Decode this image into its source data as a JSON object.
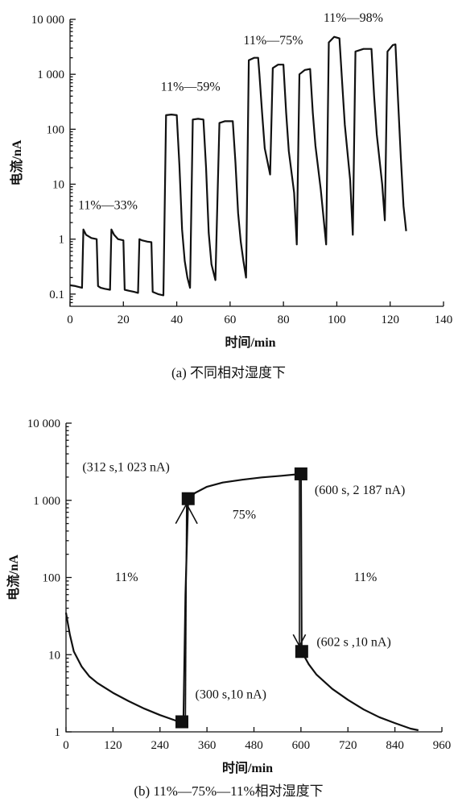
{
  "chart_data": [
    {
      "type": "line",
      "caption": "(a) 不同相对湿度下",
      "xlabel": "时间/min",
      "ylabel": "电流/nA",
      "xlim": [
        0,
        140
      ],
      "ylim": [
        0.06,
        10000
      ],
      "yscale": "log",
      "x_ticks": [
        0,
        20,
        40,
        60,
        80,
        100,
        120,
        140
      ],
      "x_tick_labels": [
        "0",
        "20",
        "40",
        "60",
        "80",
        "100",
        "120",
        "140"
      ],
      "y_ticks": [
        0.1,
        1,
        10,
        100,
        1000,
        10000
      ],
      "y_tick_labels": [
        "0.1",
        "1",
        "10",
        "100",
        "1 000",
        "10 000"
      ],
      "annotations": [
        {
          "text": "11%—33%",
          "x": 3,
          "y": 3.5
        },
        {
          "text": "11%—59%",
          "x": 34,
          "y": 500
        },
        {
          "text": "11%—75%",
          "x": 65,
          "y": 3500
        },
        {
          "text": "11%—98%",
          "x": 95,
          "y": 9000
        }
      ],
      "series": [
        {
          "points": [
            [
              0,
              0.145
            ],
            [
              2,
              0.14
            ],
            [
              4.5,
              0.13
            ],
            [
              5,
              1.5
            ],
            [
              6,
              1.2
            ],
            [
              8,
              1.05
            ],
            [
              10,
              1.0
            ],
            [
              10.5,
              0.14
            ],
            [
              11.5,
              0.13
            ],
            [
              13,
              0.125
            ],
            [
              15,
              0.12
            ],
            [
              15.5,
              1.5
            ],
            [
              16.5,
              1.2
            ],
            [
              18,
              1.0
            ],
            [
              20,
              0.95
            ],
            [
              20.5,
              0.12
            ],
            [
              22,
              0.115
            ],
            [
              24,
              0.11
            ],
            [
              25.5,
              0.105
            ],
            [
              26,
              1.0
            ],
            [
              27,
              0.95
            ],
            [
              29,
              0.9
            ],
            [
              30.5,
              0.88
            ],
            [
              31,
              0.11
            ],
            [
              33,
              0.1
            ],
            [
              35,
              0.095
            ],
            [
              36,
              180
            ],
            [
              38,
              185
            ],
            [
              40,
              180
            ],
            [
              41,
              22
            ],
            [
              42,
              1.5
            ],
            [
              43,
              0.4
            ],
            [
              44,
              0.2
            ],
            [
              45,
              0.13
            ],
            [
              46,
              150
            ],
            [
              48,
              155
            ],
            [
              50,
              150
            ],
            [
              51,
              20
            ],
            [
              52,
              1.3
            ],
            [
              53,
              0.35
            ],
            [
              54.5,
              0.18
            ],
            [
              56,
              130
            ],
            [
              58,
              140
            ],
            [
              61,
              140
            ],
            [
              62,
              25
            ],
            [
              63,
              3
            ],
            [
              64,
              0.9
            ],
            [
              65,
              0.4
            ],
            [
              66,
              0.2
            ],
            [
              67,
              1800
            ],
            [
              69,
              2000
            ],
            [
              70.5,
              2000
            ],
            [
              71,
              1000
            ],
            [
              72,
              200
            ],
            [
              73,
              45
            ],
            [
              75,
              15
            ],
            [
              76,
              1300
            ],
            [
              78,
              1500
            ],
            [
              80,
              1500
            ],
            [
              81,
              200
            ],
            [
              82,
              40
            ],
            [
              84,
              7
            ],
            [
              85,
              0.8
            ],
            [
              86,
              1000
            ],
            [
              88,
              1200
            ],
            [
              90,
              1250
            ],
            [
              91,
              200
            ],
            [
              92,
              50
            ],
            [
              94,
              8
            ],
            [
              96,
              0.8
            ],
            [
              97,
              3800
            ],
            [
              99,
              4800
            ],
            [
              101,
              4500
            ],
            [
              102,
              700
            ],
            [
              103,
              120
            ],
            [
              105,
              12
            ],
            [
              106,
              1.2
            ],
            [
              107,
              2600
            ],
            [
              110,
              2900
            ],
            [
              113,
              2900
            ],
            [
              114,
              400
            ],
            [
              115,
              80
            ],
            [
              117,
              10
            ],
            [
              118,
              2.2
            ],
            [
              119,
              2600
            ],
            [
              121,
              3400
            ],
            [
              122,
              3500
            ],
            [
              123,
              300
            ],
            [
              124,
              30
            ],
            [
              125,
              4
            ],
            [
              126,
              1.4
            ]
          ]
        }
      ]
    },
    {
      "type": "line",
      "caption": "(b) 11%—75%—11%相对湿度下",
      "xlabel": "时间/min",
      "ylabel": "电流/nA",
      "xlim": [
        0,
        960
      ],
      "ylim": [
        1,
        10000
      ],
      "yscale": "log",
      "x_ticks": [
        0,
        120,
        240,
        360,
        480,
        600,
        720,
        840,
        960
      ],
      "x_tick_labels": [
        "0",
        "120",
        "240",
        "360",
        "480",
        "600",
        "720",
        "840",
        "960"
      ],
      "y_ticks": [
        1,
        10,
        100,
        1000,
        10000
      ],
      "y_tick_labels": [
        "1",
        "10",
        "100",
        "1 000",
        "10 000"
      ],
      "annotations": [
        {
          "text": "(312 s,1 023 nA)",
          "x": 42,
          "y": 2400
        },
        {
          "text": "(600 s, 2 187 nA)",
          "x": 635,
          "y": 1200
        },
        {
          "text": "75%",
          "x": 425,
          "y": 580
        },
        {
          "text": "11%",
          "x": 125,
          "y": 90
        },
        {
          "text": "11%",
          "x": 735,
          "y": 90
        },
        {
          "text": "(602 s ,10 nA)",
          "x": 640,
          "y": 13
        },
        {
          "text": "(300 s,10 nA)",
          "x": 330,
          "y": 2.7
        }
      ],
      "markers": [
        {
          "label": "(300 s,10 nA)",
          "x": 296,
          "y": 1.35
        },
        {
          "label": "(312 s,1 023 nA)",
          "x": 312,
          "y": 1050
        },
        {
          "label": "(600 s, 2 187 nA)",
          "x": 600,
          "y": 2200
        },
        {
          "label": "(602 s ,10 nA)",
          "x": 602,
          "y": 11
        }
      ],
      "arrows": [
        {
          "from": [
            305,
            1.5
          ],
          "to": [
            308,
            900
          ]
        },
        {
          "from": [
            596,
            2000
          ],
          "to": [
            596,
            13
          ]
        }
      ],
      "series": [
        {
          "points": [
            [
              0,
              35
            ],
            [
              5,
              25
            ],
            [
              10,
              18
            ],
            [
              20,
              11
            ],
            [
              40,
              7
            ],
            [
              60,
              5.2
            ],
            [
              80,
              4.3
            ],
            [
              120,
              3.2
            ],
            [
              160,
              2.5
            ],
            [
              200,
              2
            ],
            [
              240,
              1.65
            ],
            [
              280,
              1.4
            ],
            [
              296,
              1.35
            ],
            [
              300,
              1.4
            ],
            [
              305,
              60
            ],
            [
              312,
              1050
            ],
            [
              330,
              1250
            ],
            [
              360,
              1500
            ],
            [
              400,
              1700
            ],
            [
              450,
              1850
            ],
            [
              500,
              1980
            ],
            [
              550,
              2080
            ],
            [
              600,
              2200
            ],
            [
              602,
              11
            ],
            [
              620,
              7.5
            ],
            [
              640,
              5.5
            ],
            [
              680,
              3.6
            ],
            [
              720,
              2.6
            ],
            [
              760,
              1.95
            ],
            [
              800,
              1.55
            ],
            [
              840,
              1.3
            ],
            [
              880,
              1.1
            ],
            [
              900,
              1.05
            ]
          ]
        }
      ]
    }
  ]
}
